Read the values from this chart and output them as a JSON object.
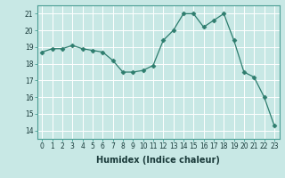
{
  "x": [
    0,
    1,
    2,
    3,
    4,
    5,
    6,
    7,
    8,
    9,
    10,
    11,
    12,
    13,
    14,
    15,
    16,
    17,
    18,
    19,
    20,
    21,
    22,
    23
  ],
  "y": [
    18.7,
    18.9,
    18.9,
    19.1,
    18.9,
    18.8,
    18.7,
    18.2,
    17.5,
    17.5,
    17.6,
    17.9,
    19.4,
    20.0,
    21.0,
    21.0,
    20.2,
    20.6,
    21.0,
    19.4,
    17.5,
    17.2,
    16.0,
    14.3
  ],
  "line_color": "#2e7d6e",
  "marker": "D",
  "marker_size": 2.5,
  "bg_color": "#c8e8e5",
  "grid_color": "#ffffff",
  "xlabel": "Humidex (Indice chaleur)",
  "ylim": [
    13.5,
    21.5
  ],
  "xlim": [
    -0.5,
    23.5
  ],
  "yticks": [
    14,
    15,
    16,
    17,
    18,
    19,
    20,
    21
  ],
  "xticks": [
    0,
    1,
    2,
    3,
    4,
    5,
    6,
    7,
    8,
    9,
    10,
    11,
    12,
    13,
    14,
    15,
    16,
    17,
    18,
    19,
    20,
    21,
    22,
    23
  ],
  "tick_fontsize": 5.5,
  "xlabel_fontsize": 7,
  "line_width": 0.9,
  "spine_color": "#4a9e94"
}
